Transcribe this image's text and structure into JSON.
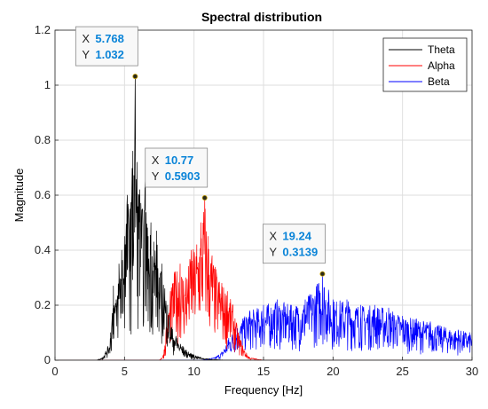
{
  "chart_data": {
    "type": "line",
    "title": "Spectral distribution",
    "xlabel": "Frequency [Hz]",
    "ylabel": "Magnitude",
    "xlim": [
      0,
      30
    ],
    "ylim": [
      0,
      1.2
    ],
    "xticks": [
      "0",
      "5",
      "10",
      "15",
      "20",
      "25",
      "30"
    ],
    "yticks": [
      "0",
      "0.2",
      "0.4",
      "0.6",
      "0.8",
      "1",
      "1.2"
    ],
    "grid": true,
    "legend_position": "top-right",
    "series": [
      {
        "name": "Theta",
        "color": "#000000",
        "x": [
          0,
          3.0,
          3.4,
          3.8,
          4.0,
          4.2,
          4.4,
          4.6,
          4.8,
          5.0,
          5.2,
          5.4,
          5.6,
          5.768,
          5.9,
          6.1,
          6.3,
          6.5,
          6.7,
          6.9,
          7.1,
          7.3,
          7.5,
          7.7,
          7.9,
          8.1,
          8.4,
          8.8,
          9.2,
          9.6,
          10.0,
          10.5,
          11.0,
          11.5,
          12.0,
          13.0,
          30
        ],
        "y": [
          0,
          0,
          0.01,
          0.05,
          0.1,
          0.27,
          0.22,
          0.35,
          0.4,
          0.45,
          0.6,
          0.55,
          0.76,
          1.032,
          0.72,
          0.62,
          0.55,
          0.65,
          0.45,
          0.5,
          0.43,
          0.47,
          0.3,
          0.35,
          0.26,
          0.2,
          0.12,
          0.08,
          0.05,
          0.03,
          0.02,
          0.01,
          0.005,
          0.003,
          0.001,
          0,
          0
        ]
      },
      {
        "name": "Alpha",
        "color": "#ff0000",
        "x": [
          0,
          7.5,
          7.8,
          8.0,
          8.3,
          8.6,
          9.0,
          9.4,
          9.8,
          10.2,
          10.5,
          10.77,
          11.0,
          11.3,
          11.6,
          12.0,
          12.4,
          12.8,
          13.2,
          13.6,
          14.0,
          15.0,
          30
        ],
        "y": [
          0,
          0,
          0.02,
          0.12,
          0.25,
          0.32,
          0.35,
          0.3,
          0.4,
          0.42,
          0.5,
          0.5903,
          0.45,
          0.38,
          0.33,
          0.28,
          0.25,
          0.2,
          0.1,
          0.04,
          0.01,
          0,
          0
        ]
      },
      {
        "name": "Beta",
        "color": "#0000ff",
        "x": [
          0,
          10.5,
          11.5,
          12.0,
          12.5,
          13.0,
          13.5,
          14.0,
          15.0,
          16.0,
          17.0,
          18.0,
          19.24,
          20.0,
          21.0,
          22.0,
          23.0,
          24.0,
          25.0,
          26.0,
          27.0,
          28.0,
          29.0,
          30.0
        ],
        "y": [
          0,
          0,
          0.01,
          0.03,
          0.08,
          0.12,
          0.15,
          0.18,
          0.2,
          0.22,
          0.2,
          0.22,
          0.3139,
          0.22,
          0.22,
          0.2,
          0.2,
          0.19,
          0.16,
          0.15,
          0.14,
          0.12,
          0.11,
          0.1
        ]
      }
    ],
    "datatips": [
      {
        "series": "Theta",
        "x_label": "X",
        "y_label": "Y",
        "x_value": "5.768",
        "y_value": "1.032",
        "x": 5.768,
        "y": 1.032
      },
      {
        "series": "Alpha",
        "x_label": "X",
        "y_label": "Y",
        "x_value": "10.77",
        "y_value": "0.5903",
        "x": 10.77,
        "y": 0.5903
      },
      {
        "series": "Beta",
        "x_label": "X",
        "y_label": "Y",
        "x_value": "19.24",
        "y_value": "0.3139",
        "x": 19.24,
        "y": 0.3139
      }
    ],
    "datatip_value_color": "#0a84d8"
  }
}
